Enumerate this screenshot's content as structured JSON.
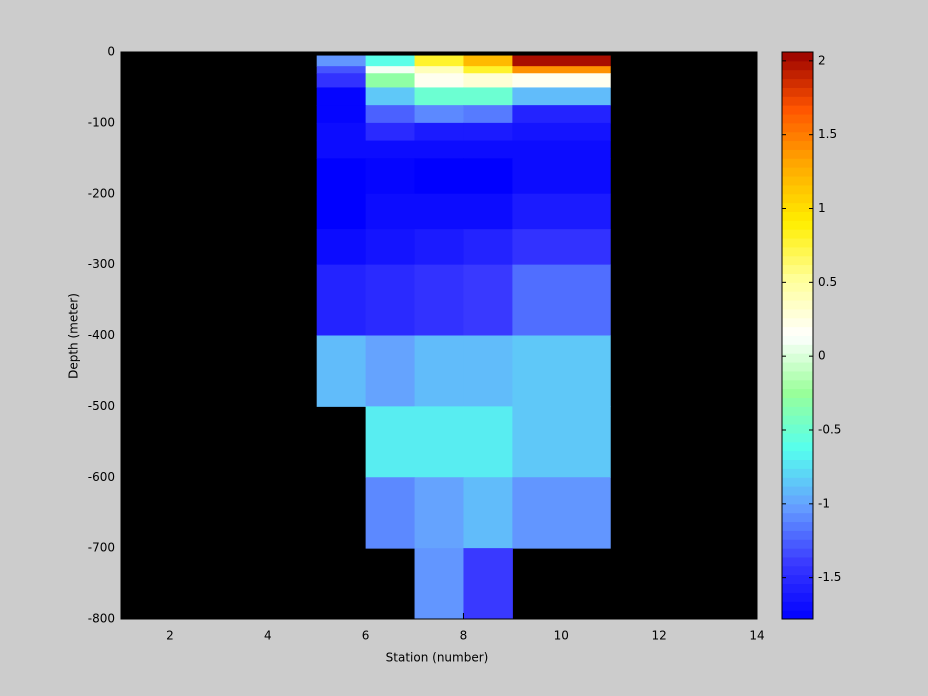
{
  "chart_data": {
    "type": "heatmap",
    "xlabel": "Station (number)",
    "ylabel": "Depth (meter)",
    "x": [
      5,
      6,
      7,
      8,
      9,
      11
    ],
    "y": [
      -5,
      -20,
      -30,
      -50,
      -75,
      -100,
      -125,
      -150,
      -200,
      -250,
      -300,
      -400,
      -500,
      -600,
      -700,
      -800
    ],
    "values": [
      [
        -1.05,
        -0.6,
        0.8,
        1.2,
        2.0
      ],
      [
        -1.3,
        0.1,
        0.4,
        0.8,
        1.4
      ],
      [
        -1.45,
        -0.3,
        0.2,
        0.3,
        0.2
      ],
      [
        -1.75,
        -0.85,
        -0.5,
        -0.5,
        -0.9
      ],
      [
        -1.75,
        -1.25,
        -1.1,
        -1.15,
        -1.55
      ],
      [
        -1.7,
        -1.5,
        -1.6,
        -1.6,
        -1.65
      ],
      [
        -1.7,
        -1.7,
        -1.7,
        -1.7,
        -1.7
      ],
      [
        -1.78,
        -1.75,
        -1.78,
        -1.78,
        -1.7
      ],
      [
        -1.78,
        -1.7,
        -1.7,
        -1.7,
        -1.6
      ],
      [
        -1.7,
        -1.65,
        -1.6,
        -1.55,
        -1.45
      ],
      [
        -1.55,
        -1.5,
        -1.45,
        -1.4,
        -1.2
      ],
      [
        -0.9,
        -1.0,
        -0.9,
        -0.9,
        -0.85
      ],
      [
        null,
        -0.7,
        -0.7,
        -0.7,
        -0.85
      ],
      [
        null,
        -1.1,
        -1.0,
        -0.9,
        -1.05
      ],
      [
        null,
        null,
        -1.05,
        -1.4,
        null
      ]
    ],
    "xlim": [
      1,
      14
    ],
    "xticks": [
      2,
      4,
      6,
      8,
      10,
      12,
      14
    ],
    "ylim": [
      -800,
      0
    ],
    "yticks": [
      0,
      -100,
      -200,
      -300,
      -400,
      -500,
      -600,
      -700,
      -800
    ],
    "clim": [
      -1.78,
      2.06
    ],
    "cticks": [
      -1.5,
      -1,
      -0.5,
      0,
      0.5,
      1,
      1.5,
      2
    ],
    "colormap": [
      "#0000ff",
      "#3a3aff",
      "#66a0ff",
      "#55ffee",
      "#99ff99",
      "#ffffff",
      "#ffff99",
      "#ffee00",
      "#ffaa00",
      "#ff5500",
      "#990000"
    ],
    "background": "#000000"
  }
}
